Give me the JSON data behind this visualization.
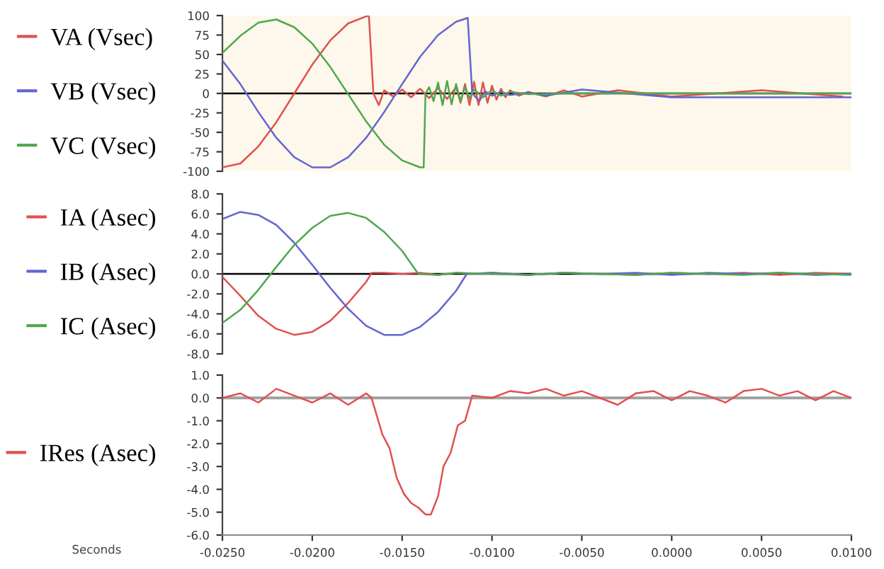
{
  "chart_data": [
    {
      "type": "line",
      "xlim": [
        -0.025,
        0.01
      ],
      "tick_labels": "y",
      "ylim": [
        -100,
        100
      ],
      "yticks": [
        100,
        75,
        50,
        25,
        0,
        -25,
        -50,
        -75,
        -100
      ],
      "legend": "left",
      "marker": "none",
      "line_style": "solid",
      "ref_lines": [
        {
          "axis": "y",
          "value": 0,
          "color": "#000000"
        }
      ],
      "series": [
        {
          "name": "VA (Vsec)",
          "color": "#e05050",
          "x": [
            -0.025,
            -0.024,
            -0.023,
            -0.022,
            -0.021,
            -0.02,
            -0.019,
            -0.018,
            -0.017,
            -0.01685,
            -0.0166,
            -0.0163,
            -0.016,
            -0.0155,
            -0.015,
            -0.0145,
            -0.014,
            -0.0135,
            -0.013,
            -0.0125,
            -0.012,
            -0.01175,
            -0.0115,
            -0.01125,
            -0.011,
            -0.01075,
            -0.0105,
            -0.01025,
            -0.01,
            -0.00975,
            -0.0095,
            -0.00925,
            -0.009,
            -0.0085,
            -0.008,
            -0.007,
            -0.006,
            -0.005,
            -0.003,
            0,
            0.005,
            0.0095
          ],
          "values": [
            -95,
            -90,
            -68,
            -37,
            0,
            37,
            68,
            90,
            99,
            100,
            0,
            -15,
            4,
            -4,
            5,
            -5,
            6,
            -6,
            7,
            -7,
            8,
            -12,
            12,
            -15,
            15,
            -15,
            14,
            -12,
            10,
            -8,
            6,
            -5,
            4,
            -3,
            2,
            -4,
            4,
            -4,
            4,
            -4,
            4,
            -4
          ]
        },
        {
          "name": "VB (Vsec)",
          "color": "#6464d2",
          "x": [
            -0.025,
            -0.024,
            -0.023,
            -0.022,
            -0.021,
            -0.02,
            -0.019,
            -0.018,
            -0.017,
            -0.016,
            -0.015,
            -0.014,
            -0.013,
            -0.012,
            -0.01135,
            -0.0111,
            -0.0107,
            -0.0104,
            -0.01,
            -0.0095,
            -0.009,
            -0.008,
            -0.007,
            -0.005,
            0,
            0.01
          ],
          "values": [
            42,
            12,
            -24,
            -57,
            -82,
            -95,
            -95,
            -82,
            -57,
            -24,
            12,
            47,
            75,
            92,
            97,
            0,
            -10,
            3,
            -3,
            2,
            -2,
            1,
            -3,
            5,
            -5,
            -5
          ]
        },
        {
          "name": "VC (Vsec)",
          "color": "#4ea84e",
          "x": [
            -0.025,
            -0.024,
            -0.023,
            -0.022,
            -0.021,
            -0.02,
            -0.019,
            -0.018,
            -0.017,
            -0.016,
            -0.015,
            -0.014,
            -0.0138,
            -0.0137,
            -0.0135,
            -0.01325,
            -0.013,
            -0.01275,
            -0.0125,
            -0.01225,
            -0.012,
            -0.01175,
            -0.0115,
            -0.01125,
            -0.011,
            -0.0105,
            -0.01,
            -0.0095,
            -0.009,
            -0.008,
            -0.006,
            0,
            0.01
          ],
          "values": [
            52,
            74,
            91,
            95,
            85,
            64,
            34,
            -1,
            -36,
            -66,
            -86,
            -95,
            -95,
            0,
            8,
            -10,
            14,
            -15,
            16,
            -14,
            12,
            -10,
            8,
            -6,
            5,
            -5,
            4,
            -3,
            2,
            -1,
            0,
            0,
            0
          ]
        }
      ]
    },
    {
      "type": "line",
      "xlim": [
        -0.025,
        0.01
      ],
      "tick_labels": "y",
      "ylim": [
        -8,
        8
      ],
      "yticks": [
        {
          "value": 8,
          "label": "8.0"
        },
        {
          "value": 6,
          "label": "6.0"
        },
        {
          "value": 4,
          "label": "4.0"
        },
        {
          "value": 2,
          "label": "2.0"
        },
        {
          "value": 0,
          "label": "0.0"
        },
        {
          "value": -2,
          "label": "-2.0"
        },
        {
          "value": -4,
          "label": "-4.0"
        },
        {
          "value": -6,
          "label": "-6.0"
        },
        {
          "value": -8,
          "label": "-8.0"
        }
      ],
      "legend": "left",
      "marker": "none",
      "line_style": "solid",
      "ref_lines": [
        {
          "axis": "y",
          "value": 0,
          "color": "#000000"
        }
      ],
      "series": [
        {
          "name": "IA (Asec)",
          "color": "#e05050",
          "x": [
            -0.025,
            -0.024,
            -0.023,
            -0.022,
            -0.021,
            -0.02,
            -0.019,
            -0.018,
            -0.017,
            -0.0167,
            -0.016,
            -0.015,
            -0.014,
            -0.013,
            -0.012,
            -0.011,
            -0.01,
            -0.008,
            -0.006,
            -0.004,
            -0.002,
            0,
            0.002,
            0.004,
            0.006,
            0.008,
            0.01
          ],
          "values": [
            -0.3,
            -2.2,
            -4.2,
            -5.5,
            -6.1,
            -5.8,
            -4.7,
            -2.9,
            -0.8,
            0.1,
            0.1,
            0.0,
            0.1,
            -0.1,
            0.1,
            0.0,
            0.1,
            -0.1,
            0.1,
            0.0,
            -0.1,
            0.1,
            0.0,
            0.1,
            -0.1,
            0.1,
            0.0
          ]
        },
        {
          "name": "IB (Asec)",
          "color": "#6464d2",
          "x": [
            -0.025,
            -0.024,
            -0.023,
            -0.022,
            -0.021,
            -0.02,
            -0.019,
            -0.018,
            -0.017,
            -0.016,
            -0.015,
            -0.014,
            -0.013,
            -0.012,
            -0.0114,
            -0.01,
            -0.008,
            -0.006,
            -0.004,
            -0.002,
            0,
            0.002,
            0.004,
            0.006,
            0.008,
            0.01
          ],
          "values": [
            5.5,
            6.2,
            5.9,
            4.9,
            3.1,
            0.9,
            -1.4,
            -3.5,
            -5.2,
            -6.1,
            -6.1,
            -5.3,
            -3.8,
            -1.7,
            0,
            0.1,
            -0.1,
            0.1,
            0.0,
            0.1,
            -0.1,
            0.1,
            0.0,
            0.1,
            -0.1,
            0.0
          ]
        },
        {
          "name": "IC (Asec)",
          "color": "#4ea84e",
          "x": [
            -0.025,
            -0.024,
            -0.023,
            -0.022,
            -0.021,
            -0.02,
            -0.019,
            -0.018,
            -0.017,
            -0.016,
            -0.015,
            -0.0141,
            -0.013,
            -0.012,
            -0.01,
            -0.008,
            -0.006,
            -0.004,
            -0.002,
            0,
            0.002,
            0.004,
            0.006,
            0.008,
            0.01
          ],
          "values": [
            -4.9,
            -3.6,
            -1.6,
            0.7,
            2.9,
            4.6,
            5.8,
            6.1,
            5.6,
            4.2,
            2.3,
            0,
            -0.1,
            0.1,
            0.0,
            -0.1,
            0.1,
            0.0,
            -0.1,
            0.1,
            0.0,
            -0.1,
            0.1,
            0.0,
            -0.1
          ]
        }
      ]
    },
    {
      "type": "line",
      "xlabel": "Seconds",
      "xlim": [
        -0.025,
        0.01
      ],
      "xticks": [
        {
          "value": -0.025,
          "label": "-0.0250"
        },
        {
          "value": -0.02,
          "label": "-0.0200"
        },
        {
          "value": -0.015,
          "label": "-0.0150"
        },
        {
          "value": -0.01,
          "label": "-0.0100"
        },
        {
          "value": -0.005,
          "label": "-0.0050"
        },
        {
          "value": 0,
          "label": "0.0000"
        },
        {
          "value": 0.005,
          "label": "0.0050"
        },
        {
          "value": 0.01,
          "label": "0.0100"
        }
      ],
      "ylim": [
        -6,
        1
      ],
      "yticks": [
        {
          "value": 1,
          "label": "1.0"
        },
        {
          "value": 0,
          "label": "0.0"
        },
        {
          "value": -1,
          "label": "-1.0"
        },
        {
          "value": -2,
          "label": "-2.0"
        },
        {
          "value": -3,
          "label": "-3.0"
        },
        {
          "value": -4,
          "label": "-4.0"
        },
        {
          "value": -5,
          "label": "-5.0"
        },
        {
          "value": -6,
          "label": "-6.0"
        }
      ],
      "legend": "left",
      "marker": "none",
      "line_style": "solid",
      "ref_lines": [
        {
          "axis": "y",
          "value": 0,
          "color": "#a0a0a0"
        }
      ],
      "series": [
        {
          "name": "IRes (Asec)",
          "color": "#e05050",
          "x": [
            -0.025,
            -0.024,
            -0.023,
            -0.022,
            -0.021,
            -0.02,
            -0.019,
            -0.018,
            -0.017,
            -0.0167,
            -0.0161,
            -0.0157,
            -0.0153,
            -0.0149,
            -0.0145,
            -0.0141,
            -0.0137,
            -0.0134,
            -0.013,
            -0.0127,
            -0.0123,
            -0.0119,
            -0.0115,
            -0.0111,
            -0.01,
            -0.009,
            -0.008,
            -0.007,
            -0.006,
            -0.005,
            -0.004,
            -0.003,
            -0.002,
            -0.001,
            0,
            0.001,
            0.002,
            0.003,
            0.004,
            0.005,
            0.006,
            0.007,
            0.008,
            0.009,
            0.01
          ],
          "values": [
            0.0,
            0.2,
            -0.2,
            0.4,
            0.1,
            -0.2,
            0.2,
            -0.3,
            0.2,
            0.0,
            -1.6,
            -2.2,
            -3.5,
            -4.2,
            -4.6,
            -4.8,
            -5.1,
            -5.1,
            -4.3,
            -3.0,
            -2.4,
            -1.2,
            -1.0,
            0.1,
            0.0,
            0.3,
            0.2,
            0.4,
            0.1,
            0.3,
            0.0,
            -0.3,
            0.2,
            0.3,
            -0.1,
            0.3,
            0.1,
            -0.2,
            0.3,
            0.4,
            0.1,
            0.3,
            -0.1,
            0.3,
            0.0
          ]
        }
      ]
    }
  ]
}
